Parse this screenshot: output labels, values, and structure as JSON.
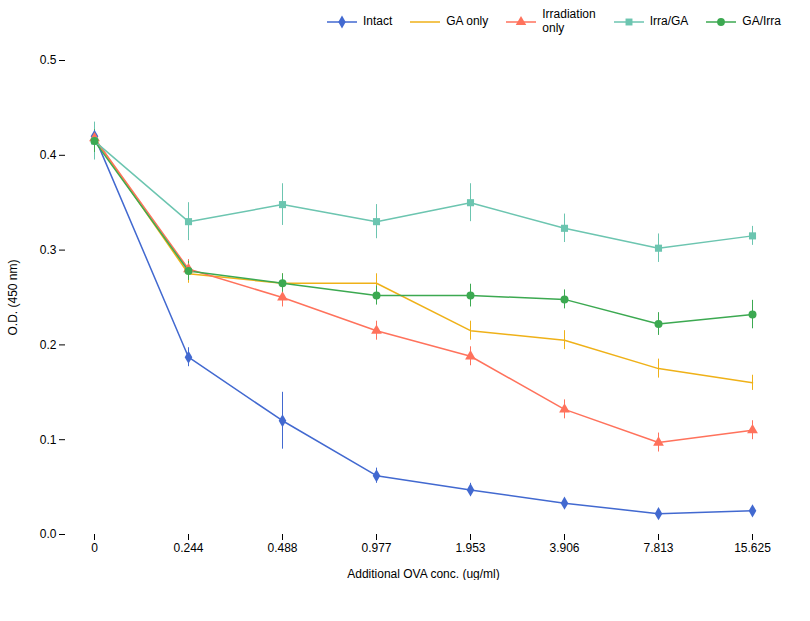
{
  "chart_data": {
    "type": "line",
    "categories": [
      "0",
      "0.244",
      "0.488",
      "0.977",
      "1.953",
      "3.906",
      "7.813",
      "15.625"
    ],
    "series": [
      {
        "name": "Intact",
        "values": [
          0.42,
          0.187,
          0.12,
          0.062,
          0.047,
          0.033,
          0.022,
          0.025
        ],
        "errors": [
          0.01,
          0.01,
          0.03,
          0.008,
          0.007,
          0.005,
          0.004,
          0.004
        ],
        "marker": "diamond"
      },
      {
        "name": "GA only",
        "values": [
          0.418,
          0.275,
          0.265,
          0.265,
          0.215,
          0.205,
          0.175,
          0.16
        ],
        "errors": [
          0.012,
          0.01,
          0.01,
          0.01,
          0.01,
          0.01,
          0.01,
          0.008
        ],
        "marker": "none"
      },
      {
        "name": "Irradiation\nonly",
        "values": [
          0.418,
          0.28,
          0.25,
          0.215,
          0.188,
          0.132,
          0.097,
          0.11
        ],
        "errors": [
          0.012,
          0.01,
          0.01,
          0.01,
          0.01,
          0.01,
          0.01,
          0.01
        ],
        "marker": "triangle"
      },
      {
        "name": "Irra/GA",
        "values": [
          0.415,
          0.33,
          0.348,
          0.33,
          0.35,
          0.323,
          0.302,
          0.315
        ],
        "errors": [
          0.02,
          0.02,
          0.022,
          0.018,
          0.02,
          0.015,
          0.015,
          0.01
        ],
        "marker": "square"
      },
      {
        "name": "GA/Irra",
        "values": [
          0.415,
          0.278,
          0.265,
          0.252,
          0.252,
          0.248,
          0.222,
          0.232
        ],
        "errors": [
          0.012,
          0.01,
          0.01,
          0.01,
          0.012,
          0.01,
          0.012,
          0.015
        ],
        "marker": "circle"
      }
    ],
    "xlabel": "Additional OVA conc. (ug/ml)",
    "ylabel": "O.D. (450 nm)",
    "ylim": [
      0.0,
      0.5
    ],
    "yticks": [
      {
        "value": 0.0,
        "label": "0.0"
      },
      0.1,
      0.2,
      0.3,
      0.4,
      0.5
    ],
    "legend": "upper right",
    "grid": false
  }
}
